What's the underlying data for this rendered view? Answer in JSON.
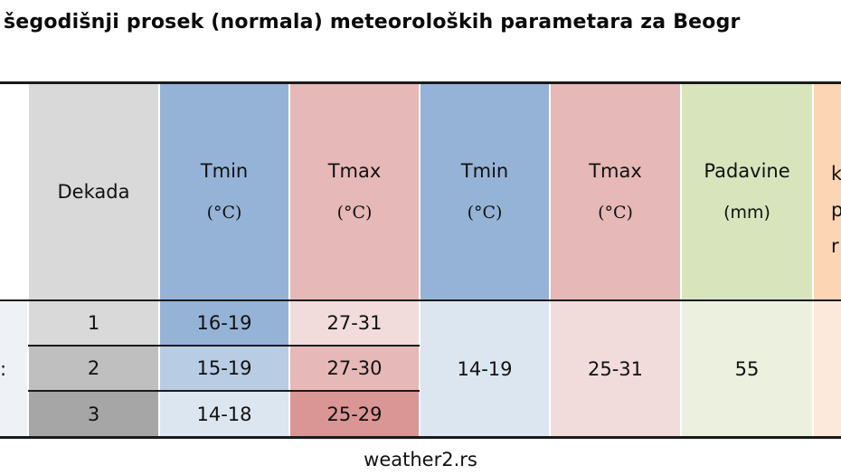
{
  "title": "šegodišnji prosek (normala) meteoroloških parametara za Beogr",
  "headers": {
    "dekada": "Dekada",
    "tmin1": "Tmin",
    "tmin1_unit": "(°C)",
    "tmax1": "Tmax",
    "tmax1_unit": "(°C)",
    "tmin2": "Tmin",
    "tmin2_unit": "(°C)",
    "tmax2": "Tmax",
    "tmax2_unit": "(°C)",
    "padavine": "Padavine",
    "padavine_unit": "(mm)",
    "partial_l1": "k",
    "partial_l2": "p",
    "partial_l3": "r"
  },
  "rows": [
    {
      "dekada": "1",
      "tmin": "16-19",
      "tmax": "27-31"
    },
    {
      "dekada": "2",
      "tmin": "15-19",
      "tmax": "27-30"
    },
    {
      "dekada": "3",
      "tmin": "14-18",
      "tmax": "25-29"
    }
  ],
  "merged": {
    "tmin": "14-19",
    "tmax": "25-31",
    "padavine": "55",
    "left_partial": ":"
  },
  "footer": "weather2.rs"
}
